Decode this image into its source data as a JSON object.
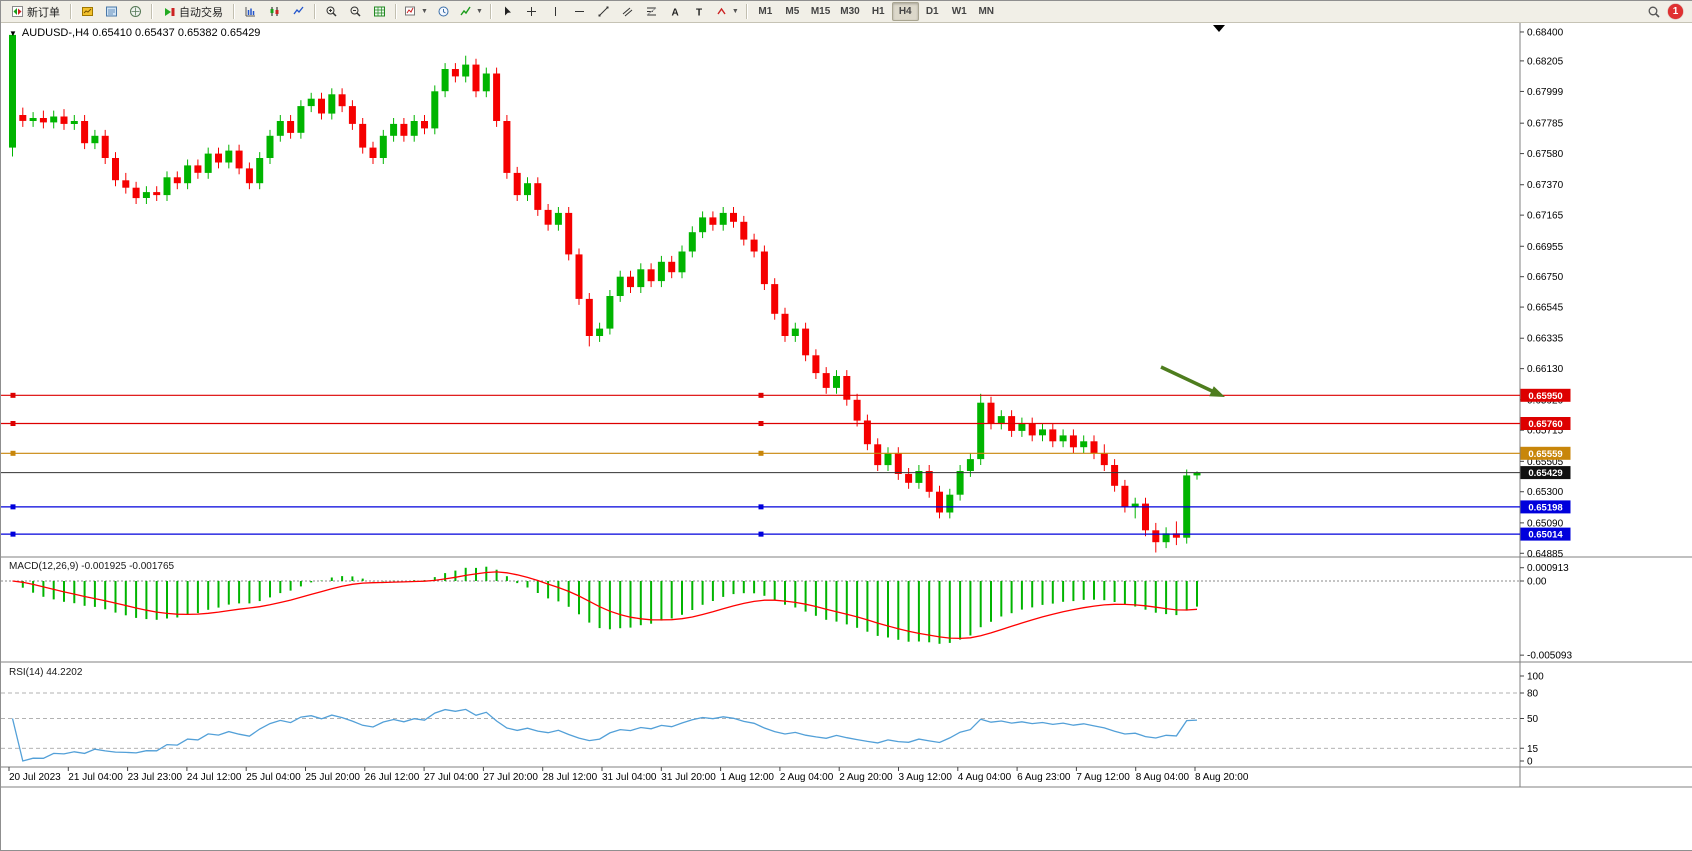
{
  "toolbar": {
    "new_order_label": "新订单",
    "autotrading_label": "自动交易",
    "timeframes": [
      "M1",
      "M5",
      "M15",
      "M30",
      "H1",
      "H4",
      "D1",
      "W1",
      "MN"
    ],
    "active_timeframe": "H4",
    "notification_count": "1"
  },
  "chart": {
    "title": "AUDUSD-,H4 0.65410 0.65437 0.65382 0.65429",
    "symbol": "AUDUSD-",
    "period": "H4",
    "ohlc": {
      "open": "0.65410",
      "high": "0.65437",
      "low": "0.65382",
      "close": "0.65429"
    },
    "price_ticks": [
      "0.68400",
      "0.68205",
      "0.67999",
      "0.67785",
      "0.67580",
      "0.67370",
      "0.67165",
      "0.66955",
      "0.66750",
      "0.66545",
      "0.66335",
      "0.66130",
      "0.65920",
      "0.65715",
      "0.65505",
      "0.65300",
      "0.65090",
      "0.64885"
    ],
    "levels": [
      {
        "name": "resistance-line-1",
        "price": 0.6595,
        "label": "0.65950",
        "color": "#dd0000"
      },
      {
        "name": "resistance-line-2",
        "price": 0.6576,
        "label": "0.65760",
        "color": "#dd0000"
      },
      {
        "name": "mid-line",
        "price": 0.65559,
        "label": "0.65559",
        "color": "#c8860a"
      },
      {
        "name": "support-line-1",
        "price": 0.65198,
        "label": "0.65198",
        "color": "#0000dc"
      },
      {
        "name": "support-line-2",
        "price": 0.65014,
        "label": "0.65014",
        "color": "#0000dc"
      }
    ],
    "current_price": {
      "value": 0.65429,
      "label": "0.65429",
      "line_color": "#333333",
      "badge_bg": "#111111"
    },
    "arrow_color": "#4e7d1e"
  },
  "macd": {
    "name": "MACD(12,26,9)",
    "value_main": "-0.001925",
    "value_signal": "-0.001765",
    "fast": 12,
    "slow": 26,
    "signal": 9,
    "axis_labels": [
      {
        "text": "0.000913",
        "value": 0.000913
      },
      {
        "text": "0.00",
        "value": 0.0
      },
      {
        "text": "-0.005093",
        "value": -0.005093
      }
    ]
  },
  "rsi": {
    "name": "RSI(14)",
    "value": "44.2202",
    "period": 14,
    "levels": [
      80,
      50,
      15
    ],
    "axis_labels": [
      {
        "text": "100",
        "value": 100
      },
      {
        "text": "80",
        "value": 80
      },
      {
        "text": "50",
        "value": 50
      },
      {
        "text": "15",
        "value": 15
      },
      {
        "text": "0",
        "value": 0
      }
    ]
  },
  "time_axis": {
    "labels": [
      "20 Jul 2023",
      "21 Jul 04:00",
      "23 Jul 23:00",
      "24 Jul 12:00",
      "25 Jul 04:00",
      "25 Jul 20:00",
      "26 Jul 12:00",
      "27 Jul 04:00",
      "27 Jul 20:00",
      "28 Jul 12:00",
      "31 Jul 04:00",
      "31 Jul 20:00",
      "1 Aug 12:00",
      "2 Aug 04:00",
      "2 Aug 20:00",
      "3 Aug 12:00",
      "4 Aug 04:00",
      "6 Aug 23:00",
      "7 Aug 12:00",
      "8 Aug 04:00",
      "8 Aug 20:00"
    ]
  },
  "chart_data": {
    "type": "candlestick",
    "symbol": "AUDUSD",
    "timeframe": "H4",
    "ohlc_format": [
      "open",
      "high",
      "low",
      "close"
    ],
    "indicators": [
      {
        "type": "MACD",
        "params": [
          12,
          26,
          9
        ]
      },
      {
        "type": "RSI",
        "params": [
          14
        ]
      }
    ],
    "candles": [
      [
        0.6762,
        0.684,
        0.6756,
        0.6838
      ],
      [
        0.6784,
        0.6789,
        0.6776,
        0.678
      ],
      [
        0.678,
        0.6786,
        0.6776,
        0.6782
      ],
      [
        0.6782,
        0.6787,
        0.6775,
        0.6779
      ],
      [
        0.6779,
        0.6787,
        0.6775,
        0.6783
      ],
      [
        0.6783,
        0.6788,
        0.6774,
        0.6778
      ],
      [
        0.6778,
        0.6784,
        0.6774,
        0.678
      ],
      [
        0.678,
        0.6784,
        0.6761,
        0.6765
      ],
      [
        0.6765,
        0.6774,
        0.6761,
        0.677
      ],
      [
        0.677,
        0.6774,
        0.6751,
        0.6755
      ],
      [
        0.6755,
        0.6759,
        0.6736,
        0.674
      ],
      [
        0.674,
        0.6745,
        0.6731,
        0.6735
      ],
      [
        0.6735,
        0.6739,
        0.6724,
        0.6728
      ],
      [
        0.6728,
        0.6736,
        0.6724,
        0.6732
      ],
      [
        0.6732,
        0.6736,
        0.6726,
        0.673
      ],
      [
        0.673,
        0.6746,
        0.6726,
        0.6742
      ],
      [
        0.6742,
        0.6746,
        0.6734,
        0.6738
      ],
      [
        0.6738,
        0.6754,
        0.6734,
        0.675
      ],
      [
        0.675,
        0.6754,
        0.6741,
        0.6745
      ],
      [
        0.6745,
        0.6762,
        0.6741,
        0.6758
      ],
      [
        0.6758,
        0.6762,
        0.6748,
        0.6752
      ],
      [
        0.6752,
        0.6764,
        0.6748,
        0.676
      ],
      [
        0.676,
        0.6764,
        0.6744,
        0.6748
      ],
      [
        0.6748,
        0.6752,
        0.6734,
        0.6738
      ],
      [
        0.6738,
        0.6759,
        0.6734,
        0.6755
      ],
      [
        0.6755,
        0.6774,
        0.6751,
        0.677
      ],
      [
        0.677,
        0.6784,
        0.6766,
        0.678
      ],
      [
        0.678,
        0.6784,
        0.6768,
        0.6772
      ],
      [
        0.6772,
        0.6794,
        0.6768,
        0.679
      ],
      [
        0.679,
        0.6799,
        0.6786,
        0.6795
      ],
      [
        0.6795,
        0.6799,
        0.6781,
        0.6785
      ],
      [
        0.6785,
        0.6802,
        0.6781,
        0.6798
      ],
      [
        0.6798,
        0.6802,
        0.6786,
        0.679
      ],
      [
        0.679,
        0.6794,
        0.6774,
        0.6778
      ],
      [
        0.6778,
        0.6782,
        0.6758,
        0.6762
      ],
      [
        0.6762,
        0.6766,
        0.6751,
        0.6755
      ],
      [
        0.6755,
        0.6774,
        0.6751,
        0.677
      ],
      [
        0.677,
        0.6782,
        0.6766,
        0.6778
      ],
      [
        0.6778,
        0.6782,
        0.6766,
        0.677
      ],
      [
        0.677,
        0.6784,
        0.6766,
        0.678
      ],
      [
        0.678,
        0.6784,
        0.6771,
        0.6775
      ],
      [
        0.6775,
        0.6804,
        0.6771,
        0.68
      ],
      [
        0.68,
        0.6819,
        0.6796,
        0.6815
      ],
      [
        0.6815,
        0.6819,
        0.6806,
        0.681
      ],
      [
        0.681,
        0.6824,
        0.6806,
        0.6818
      ],
      [
        0.6818,
        0.6822,
        0.6796,
        0.68
      ],
      [
        0.68,
        0.6816,
        0.6796,
        0.6812
      ],
      [
        0.6812,
        0.6816,
        0.6776,
        0.678
      ],
      [
        0.678,
        0.6784,
        0.6741,
        0.6745
      ],
      [
        0.6745,
        0.6749,
        0.6726,
        0.673
      ],
      [
        0.673,
        0.6742,
        0.6726,
        0.6738
      ],
      [
        0.6738,
        0.6742,
        0.6716,
        0.672
      ],
      [
        0.672,
        0.6724,
        0.6706,
        0.671
      ],
      [
        0.671,
        0.6722,
        0.6706,
        0.6718
      ],
      [
        0.6718,
        0.6722,
        0.6686,
        0.669
      ],
      [
        0.669,
        0.6694,
        0.6656,
        0.666
      ],
      [
        0.666,
        0.6664,
        0.6628,
        0.6635
      ],
      [
        0.6635,
        0.6644,
        0.6631,
        0.664
      ],
      [
        0.664,
        0.6666,
        0.6636,
        0.6662
      ],
      [
        0.6662,
        0.6679,
        0.6658,
        0.6675
      ],
      [
        0.6675,
        0.6679,
        0.6664,
        0.6668
      ],
      [
        0.6668,
        0.6684,
        0.6664,
        0.668
      ],
      [
        0.668,
        0.6684,
        0.6668,
        0.6672
      ],
      [
        0.6672,
        0.6689,
        0.6668,
        0.6685
      ],
      [
        0.6685,
        0.6689,
        0.6674,
        0.6678
      ],
      [
        0.6678,
        0.6696,
        0.6674,
        0.6692
      ],
      [
        0.6692,
        0.6709,
        0.6688,
        0.6705
      ],
      [
        0.6705,
        0.6719,
        0.6701,
        0.6715
      ],
      [
        0.6715,
        0.6719,
        0.6706,
        0.671
      ],
      [
        0.671,
        0.6722,
        0.6706,
        0.6718
      ],
      [
        0.6718,
        0.6722,
        0.6708,
        0.6712
      ],
      [
        0.6712,
        0.6716,
        0.6696,
        0.67
      ],
      [
        0.67,
        0.6704,
        0.6688,
        0.6692
      ],
      [
        0.6692,
        0.6696,
        0.6666,
        0.667
      ],
      [
        0.667,
        0.6674,
        0.6646,
        0.665
      ],
      [
        0.665,
        0.6654,
        0.6631,
        0.6635
      ],
      [
        0.6635,
        0.6644,
        0.6631,
        0.664
      ],
      [
        0.664,
        0.6644,
        0.6618,
        0.6622
      ],
      [
        0.6622,
        0.6626,
        0.6606,
        0.661
      ],
      [
        0.661,
        0.6614,
        0.6596,
        0.66
      ],
      [
        0.66,
        0.6612,
        0.6596,
        0.6608
      ],
      [
        0.6608,
        0.6612,
        0.6588,
        0.6592
      ],
      [
        0.6592,
        0.6596,
        0.6574,
        0.6578
      ],
      [
        0.6578,
        0.6582,
        0.6558,
        0.6562
      ],
      [
        0.6562,
        0.6566,
        0.6544,
        0.6548
      ],
      [
        0.6548,
        0.656,
        0.6544,
        0.6556
      ],
      [
        0.6556,
        0.656,
        0.6538,
        0.6542
      ],
      [
        0.6542,
        0.6546,
        0.6532,
        0.6536
      ],
      [
        0.6536,
        0.6548,
        0.6532,
        0.6544
      ],
      [
        0.6544,
        0.6548,
        0.6526,
        0.653
      ],
      [
        0.653,
        0.6534,
        0.6512,
        0.6516
      ],
      [
        0.6516,
        0.6532,
        0.6512,
        0.6528
      ],
      [
        0.6528,
        0.6548,
        0.6524,
        0.6544
      ],
      [
        0.6544,
        0.6556,
        0.654,
        0.6552
      ],
      [
        0.6552,
        0.6596,
        0.6548,
        0.659
      ],
      [
        0.659,
        0.6594,
        0.6572,
        0.6576
      ],
      [
        0.6576,
        0.6585,
        0.6572,
        0.6581
      ],
      [
        0.6581,
        0.6585,
        0.6567,
        0.6571
      ],
      [
        0.6571,
        0.658,
        0.6567,
        0.6576
      ],
      [
        0.6576,
        0.658,
        0.6564,
        0.6568
      ],
      [
        0.6568,
        0.6576,
        0.6564,
        0.6572
      ],
      [
        0.6572,
        0.6576,
        0.656,
        0.6564
      ],
      [
        0.6564,
        0.6572,
        0.656,
        0.6568
      ],
      [
        0.6568,
        0.6572,
        0.6556,
        0.656
      ],
      [
        0.656,
        0.6568,
        0.6556,
        0.6564
      ],
      [
        0.6564,
        0.6568,
        0.6552,
        0.6556
      ],
      [
        0.6556,
        0.6562,
        0.6544,
        0.6548
      ],
      [
        0.6548,
        0.6552,
        0.653,
        0.6534
      ],
      [
        0.6534,
        0.6538,
        0.6516,
        0.652
      ],
      [
        0.652,
        0.6526,
        0.6512,
        0.6522
      ],
      [
        0.6522,
        0.6526,
        0.65,
        0.6504
      ],
      [
        0.6504,
        0.6509,
        0.6489,
        0.6496
      ],
      [
        0.6496,
        0.6506,
        0.6492,
        0.6502
      ],
      [
        0.6502,
        0.651,
        0.6494,
        0.6499
      ],
      [
        0.6499,
        0.6545,
        0.6495,
        0.6541
      ],
      [
        0.6541,
        0.65437,
        0.65382,
        0.65429
      ]
    ]
  },
  "colors": {
    "candle_up": "#00b400",
    "candle_down": "#f50000",
    "macd_hist": "#00b400",
    "macd_signal": "#ff0000",
    "rsi_line": "#53a0d8",
    "axis_text": "#000000",
    "separator": "#808080"
  }
}
